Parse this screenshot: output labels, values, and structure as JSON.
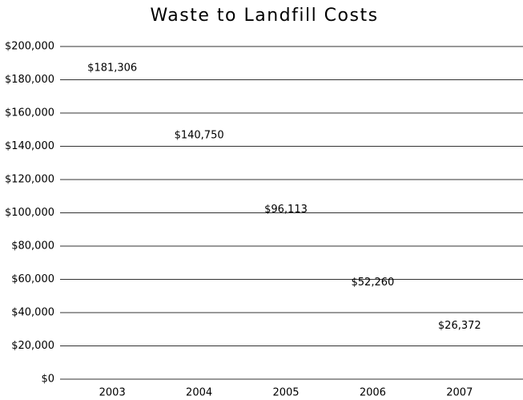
{
  "chart_data": {
    "type": "bar",
    "title": "Waste to Landfill Costs",
    "categories": [
      "2003",
      "2004",
      "2005",
      "2006",
      "2007"
    ],
    "values": [
      181306,
      140750,
      96113,
      52260,
      26372
    ],
    "value_labels": [
      "$181,306",
      "$140,750",
      "$96,113",
      "$52,260",
      "$26,372"
    ],
    "color": "#6aad6a",
    "ylim": [
      0,
      200000
    ],
    "yticks": [
      {
        "value": 0,
        "label": "$0"
      },
      {
        "value": 20000,
        "label": "$20,000"
      },
      {
        "value": 40000,
        "label": "$40,000"
      },
      {
        "value": 60000,
        "label": "$60,000"
      },
      {
        "value": 80000,
        "label": "$80,000"
      },
      {
        "value": 100000,
        "label": "$100,000"
      },
      {
        "value": 120000,
        "label": "$120,000"
      },
      {
        "value": 140000,
        "label": "$140,000"
      },
      {
        "value": 160000,
        "label": "$160,000"
      },
      {
        "value": 180000,
        "label": "$180,000"
      },
      {
        "value": 200000,
        "label": "$200,000"
      }
    ],
    "grid": true
  }
}
